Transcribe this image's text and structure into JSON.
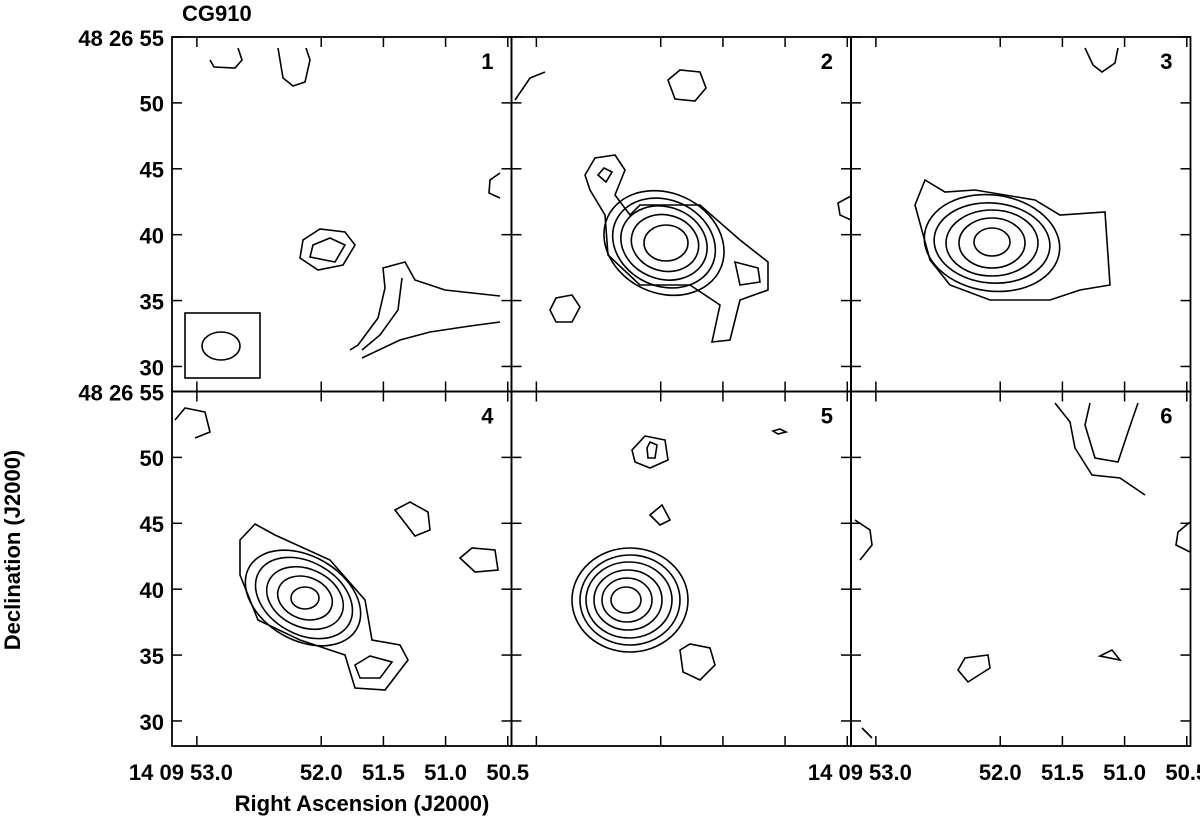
{
  "chart_data": {
    "type": "contour",
    "title": "CG910",
    "xlabel": "Right Ascension (J2000)",
    "ylabel": "Declination (J2000)",
    "xlim": [
      53.2,
      50.47
    ],
    "ylim": [
      28.1,
      55
    ],
    "xticks": [
      {
        "value": 53.0,
        "label": "14 09 53.0"
      },
      {
        "value": 52.0,
        "label": "52.0"
      },
      {
        "value": 51.5,
        "label": "51.5"
      },
      {
        "value": 51.0,
        "label": "51.0"
      },
      {
        "value": 50.5,
        "label": "50.5"
      }
    ],
    "yticks": [
      {
        "value": 55,
        "label": "48 26 55"
      },
      50,
      45,
      40,
      35,
      30
    ],
    "panels": [
      "1",
      "2",
      "3",
      "4",
      "5",
      "6"
    ]
  }
}
